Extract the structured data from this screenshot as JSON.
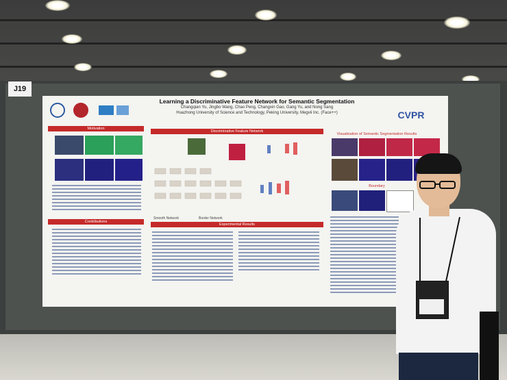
{
  "booth_tag": "J19",
  "poster": {
    "title": "Learning a Discriminative Feature Network for Semantic Segmentation",
    "authors": "Changqian Yu, Jingbo Wang, Chao Peng, Changxin Gao, Gang Yu, and Nong Sang",
    "affiliation": "Huazhong University of Science and Technology, Peking University, Megvii Inc. (Face++)",
    "conference_logo": "CVPR",
    "sections": {
      "motivation": "Motivation",
      "network": "Discriminative Feature Network",
      "results_vis": "Visualization of Semantic Segmentation Results",
      "boundary": "Boundary",
      "contributions": "Contributions",
      "experiments": "Experimental Results"
    },
    "figure_labels": {
      "smooth": "Smooth Network",
      "border": "Border Network"
    }
  },
  "colors": {
    "section_red": "#c52a2a",
    "poster_bg": "#f4f4f1",
    "board": "#4d524f",
    "cvpr_blue": "#2f53a3"
  }
}
